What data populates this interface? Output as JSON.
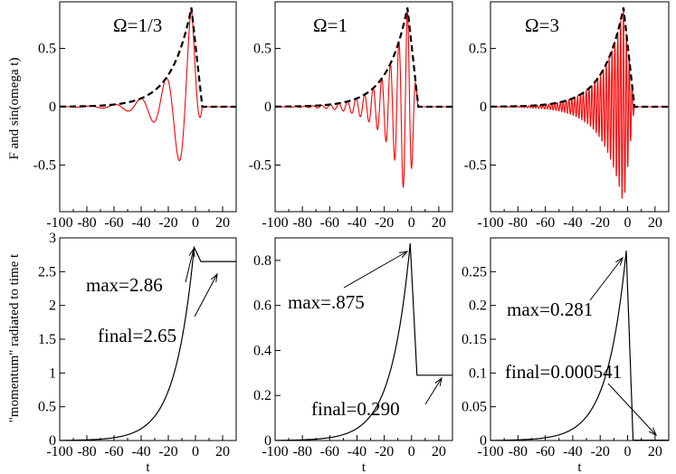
{
  "figure": {
    "ylabel_top": "F and sin(omega t)",
    "ylabel_bottom": "\"momentum\" radiated to time t",
    "xlabel": "t"
  },
  "colors": {
    "signal": "#ff0000",
    "envelope": "#000000",
    "momentum": "#000000"
  },
  "chart_data": [
    {
      "type": "line",
      "panel": "top-left",
      "title": "Ω=1/3",
      "omega": 0.3333,
      "xlim": [
        -100,
        30
      ],
      "ylim": [
        -0.9,
        0.9
      ],
      "xticks": [
        -100,
        -80,
        -60,
        -40,
        -20,
        0,
        20
      ],
      "yticks": [
        -0.5,
        0,
        0.5
      ],
      "series": [
        {
          "name": "F envelope",
          "style": "dashed",
          "formula": "0.85*exp((t+3)/15) for t<=-3, then sharp drop to 0 near t=5"
        },
        {
          "name": "F sin(omega t)",
          "style": "solid",
          "peak_value": 0.85
        }
      ]
    },
    {
      "type": "line",
      "panel": "top-middle",
      "title": "Ω=1",
      "omega": 1,
      "xlim": [
        -100,
        30
      ],
      "ylim": [
        -0.9,
        0.9
      ],
      "xticks": [
        -100,
        -80,
        -60,
        -40,
        -20,
        0,
        20
      ],
      "yticks": [
        -0.5,
        0,
        0.5
      ],
      "series": [
        {
          "name": "F envelope",
          "style": "dashed",
          "peak_value": 0.85
        },
        {
          "name": "F sin(omega t)",
          "style": "solid",
          "peak_value": 0.85
        }
      ]
    },
    {
      "type": "line",
      "panel": "top-right",
      "title": "Ω=3",
      "omega": 3,
      "xlim": [
        -100,
        30
      ],
      "ylim": [
        -0.9,
        0.9
      ],
      "xticks": [
        -100,
        -80,
        -60,
        -40,
        -20,
        0,
        20
      ],
      "yticks": [
        -0.5,
        0,
        0.5
      ],
      "series": [
        {
          "name": "F envelope",
          "style": "dashed",
          "peak_value": 0.85
        },
        {
          "name": "F sin(omega t)",
          "style": "solid",
          "peak_value": 0.85
        }
      ]
    },
    {
      "type": "line",
      "panel": "bottom-left",
      "xlim": [
        -100,
        30
      ],
      "ylim": [
        0,
        3
      ],
      "xticks": [
        -100,
        -80,
        -60,
        -40,
        -20,
        0,
        20
      ],
      "yticks": [
        0,
        0.5,
        1,
        1.5,
        2,
        2.5,
        3
      ],
      "max": 2.86,
      "final": 2.65,
      "peak_t": -1,
      "annotations": [
        "max=2.86",
        "final=2.65"
      ]
    },
    {
      "type": "line",
      "panel": "bottom-middle",
      "xlim": [
        -100,
        30
      ],
      "ylim": [
        0,
        0.9
      ],
      "xticks": [
        -100,
        -80,
        -60,
        -40,
        -20,
        0,
        20
      ],
      "yticks": [
        0,
        0.2,
        0.4,
        0.6,
        0.8
      ],
      "max": 0.875,
      "final": 0.29,
      "peak_t": -1,
      "annotations": [
        "max=.875",
        "final=0.290"
      ]
    },
    {
      "type": "line",
      "panel": "bottom-right",
      "xlim": [
        -100,
        30
      ],
      "ylim": [
        0,
        0.3
      ],
      "xticks": [
        -100,
        -80,
        -60,
        -40,
        -20,
        0,
        20
      ],
      "yticks": [
        0,
        0.05,
        0.1,
        0.15,
        0.2,
        0.25
      ],
      "max": 0.281,
      "final": 0.000541,
      "peak_t": -1,
      "annotations": [
        "max=0.281",
        "final=0.000541"
      ]
    }
  ]
}
